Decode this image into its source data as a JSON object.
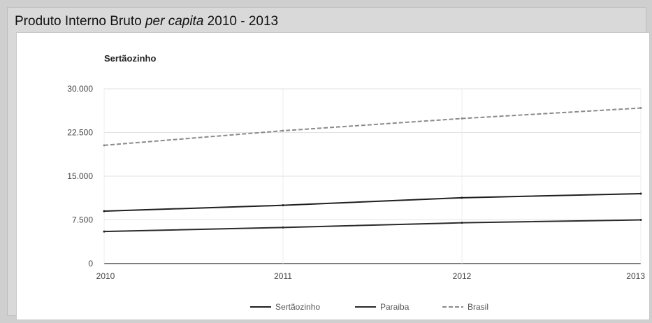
{
  "panel": {
    "title_main": "Produto Interno Bruto ",
    "title_em": "per capita",
    "title_tail": " 2010 - 2013"
  },
  "chart_data": {
    "type": "line",
    "title": "Sertãozinho",
    "x": [
      2010,
      2011,
      2012,
      2013
    ],
    "x_tick_labels": [
      "2010",
      "2011",
      "2012",
      "2013"
    ],
    "ylim": [
      0,
      30000
    ],
    "y_ticks": [
      0,
      7500,
      15000,
      22500,
      30000
    ],
    "y_tick_labels": [
      "0",
      "7.500",
      "15.000",
      "22.500",
      "30.000"
    ],
    "grid": true,
    "legend_position": "bottom",
    "series": [
      {
        "name": "Sertãozinho",
        "color": "#1f1f1f",
        "values": [
          9000,
          10000,
          11300,
          12000
        ],
        "dash": ""
      },
      {
        "name": "Paraiba",
        "color": "#2a2a2a",
        "values": [
          5500,
          6200,
          7000,
          7500
        ],
        "dash": ""
      },
      {
        "name": "Brasil",
        "color": "#8a8a8a",
        "values": [
          20300,
          22800,
          24900,
          26700
        ],
        "dash": "6,3"
      }
    ]
  }
}
